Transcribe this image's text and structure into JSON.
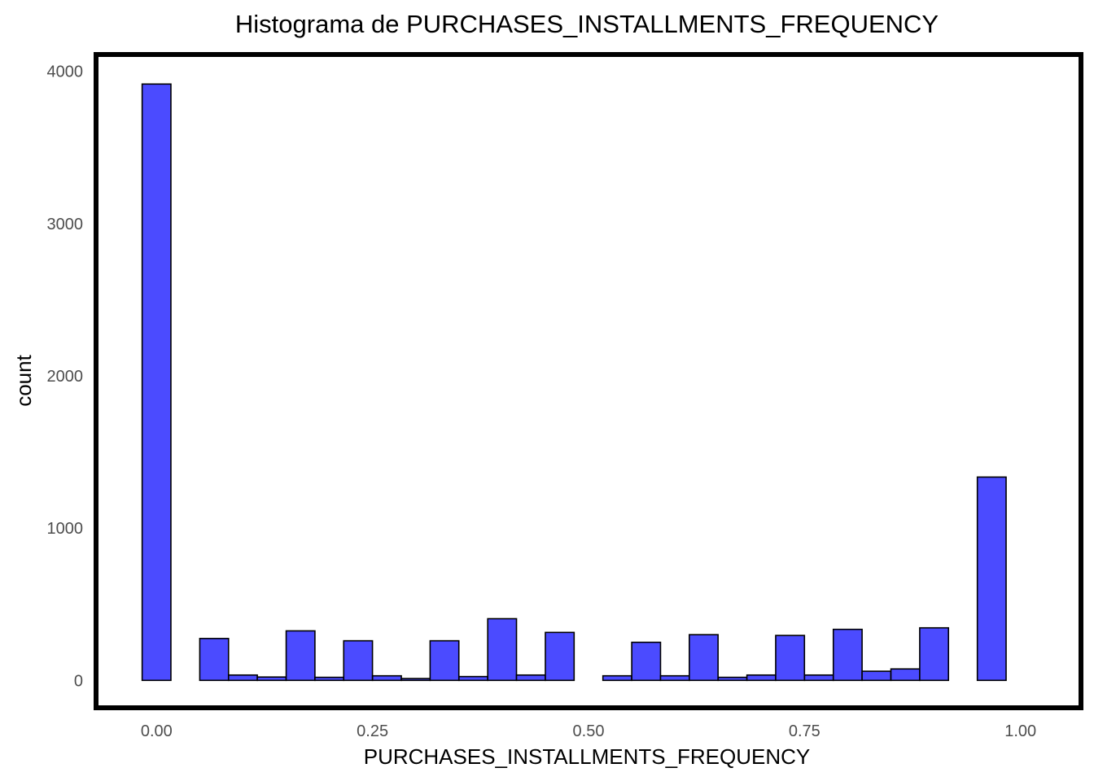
{
  "colors": {
    "bar_fill": "#4b4bff",
    "bar_stroke": "#000000",
    "panel_border": "#000000",
    "tick_text": "#4d4d4d",
    "background": "#ffffff"
  },
  "chart_data": {
    "type": "bar",
    "title": "Histograma de PURCHASES_INSTALLMENTS_FREQUENCY",
    "xlabel": "PURCHASES_INSTALLMENTS_FREQUENCY",
    "ylabel": "count",
    "xlim": [
      -0.07,
      1.07
    ],
    "ylim": [
      -180,
      4110
    ],
    "x_ticks": [
      0.0,
      0.25,
      0.5,
      0.75,
      1.0
    ],
    "x_tick_labels": [
      "0.00",
      "0.25",
      "0.50",
      "0.75",
      "1.00"
    ],
    "y_ticks": [
      0,
      1000,
      2000,
      3000,
      4000
    ],
    "y_tick_labels": [
      "0",
      "1000",
      "2000",
      "3000",
      "4000"
    ],
    "grid": false,
    "bin_width": 0.0333,
    "bin_centers": [
      0.0,
      0.0333,
      0.0667,
      0.1,
      0.1333,
      0.1667,
      0.2,
      0.2333,
      0.2667,
      0.3,
      0.3333,
      0.3667,
      0.4,
      0.4333,
      0.4667,
      0.5,
      0.5333,
      0.5667,
      0.6,
      0.6333,
      0.6667,
      0.7,
      0.7333,
      0.7667,
      0.8,
      0.8333,
      0.8667,
      0.9,
      0.9333,
      0.9667,
      1.0
    ],
    "counts": [
      3916,
      0,
      275,
      35,
      22,
      325,
      20,
      260,
      30,
      12,
      260,
      25,
      405,
      35,
      315,
      0,
      30,
      250,
      30,
      300,
      20,
      35,
      295,
      35,
      335,
      60,
      75,
      345,
      0,
      1335,
      0
    ]
  }
}
